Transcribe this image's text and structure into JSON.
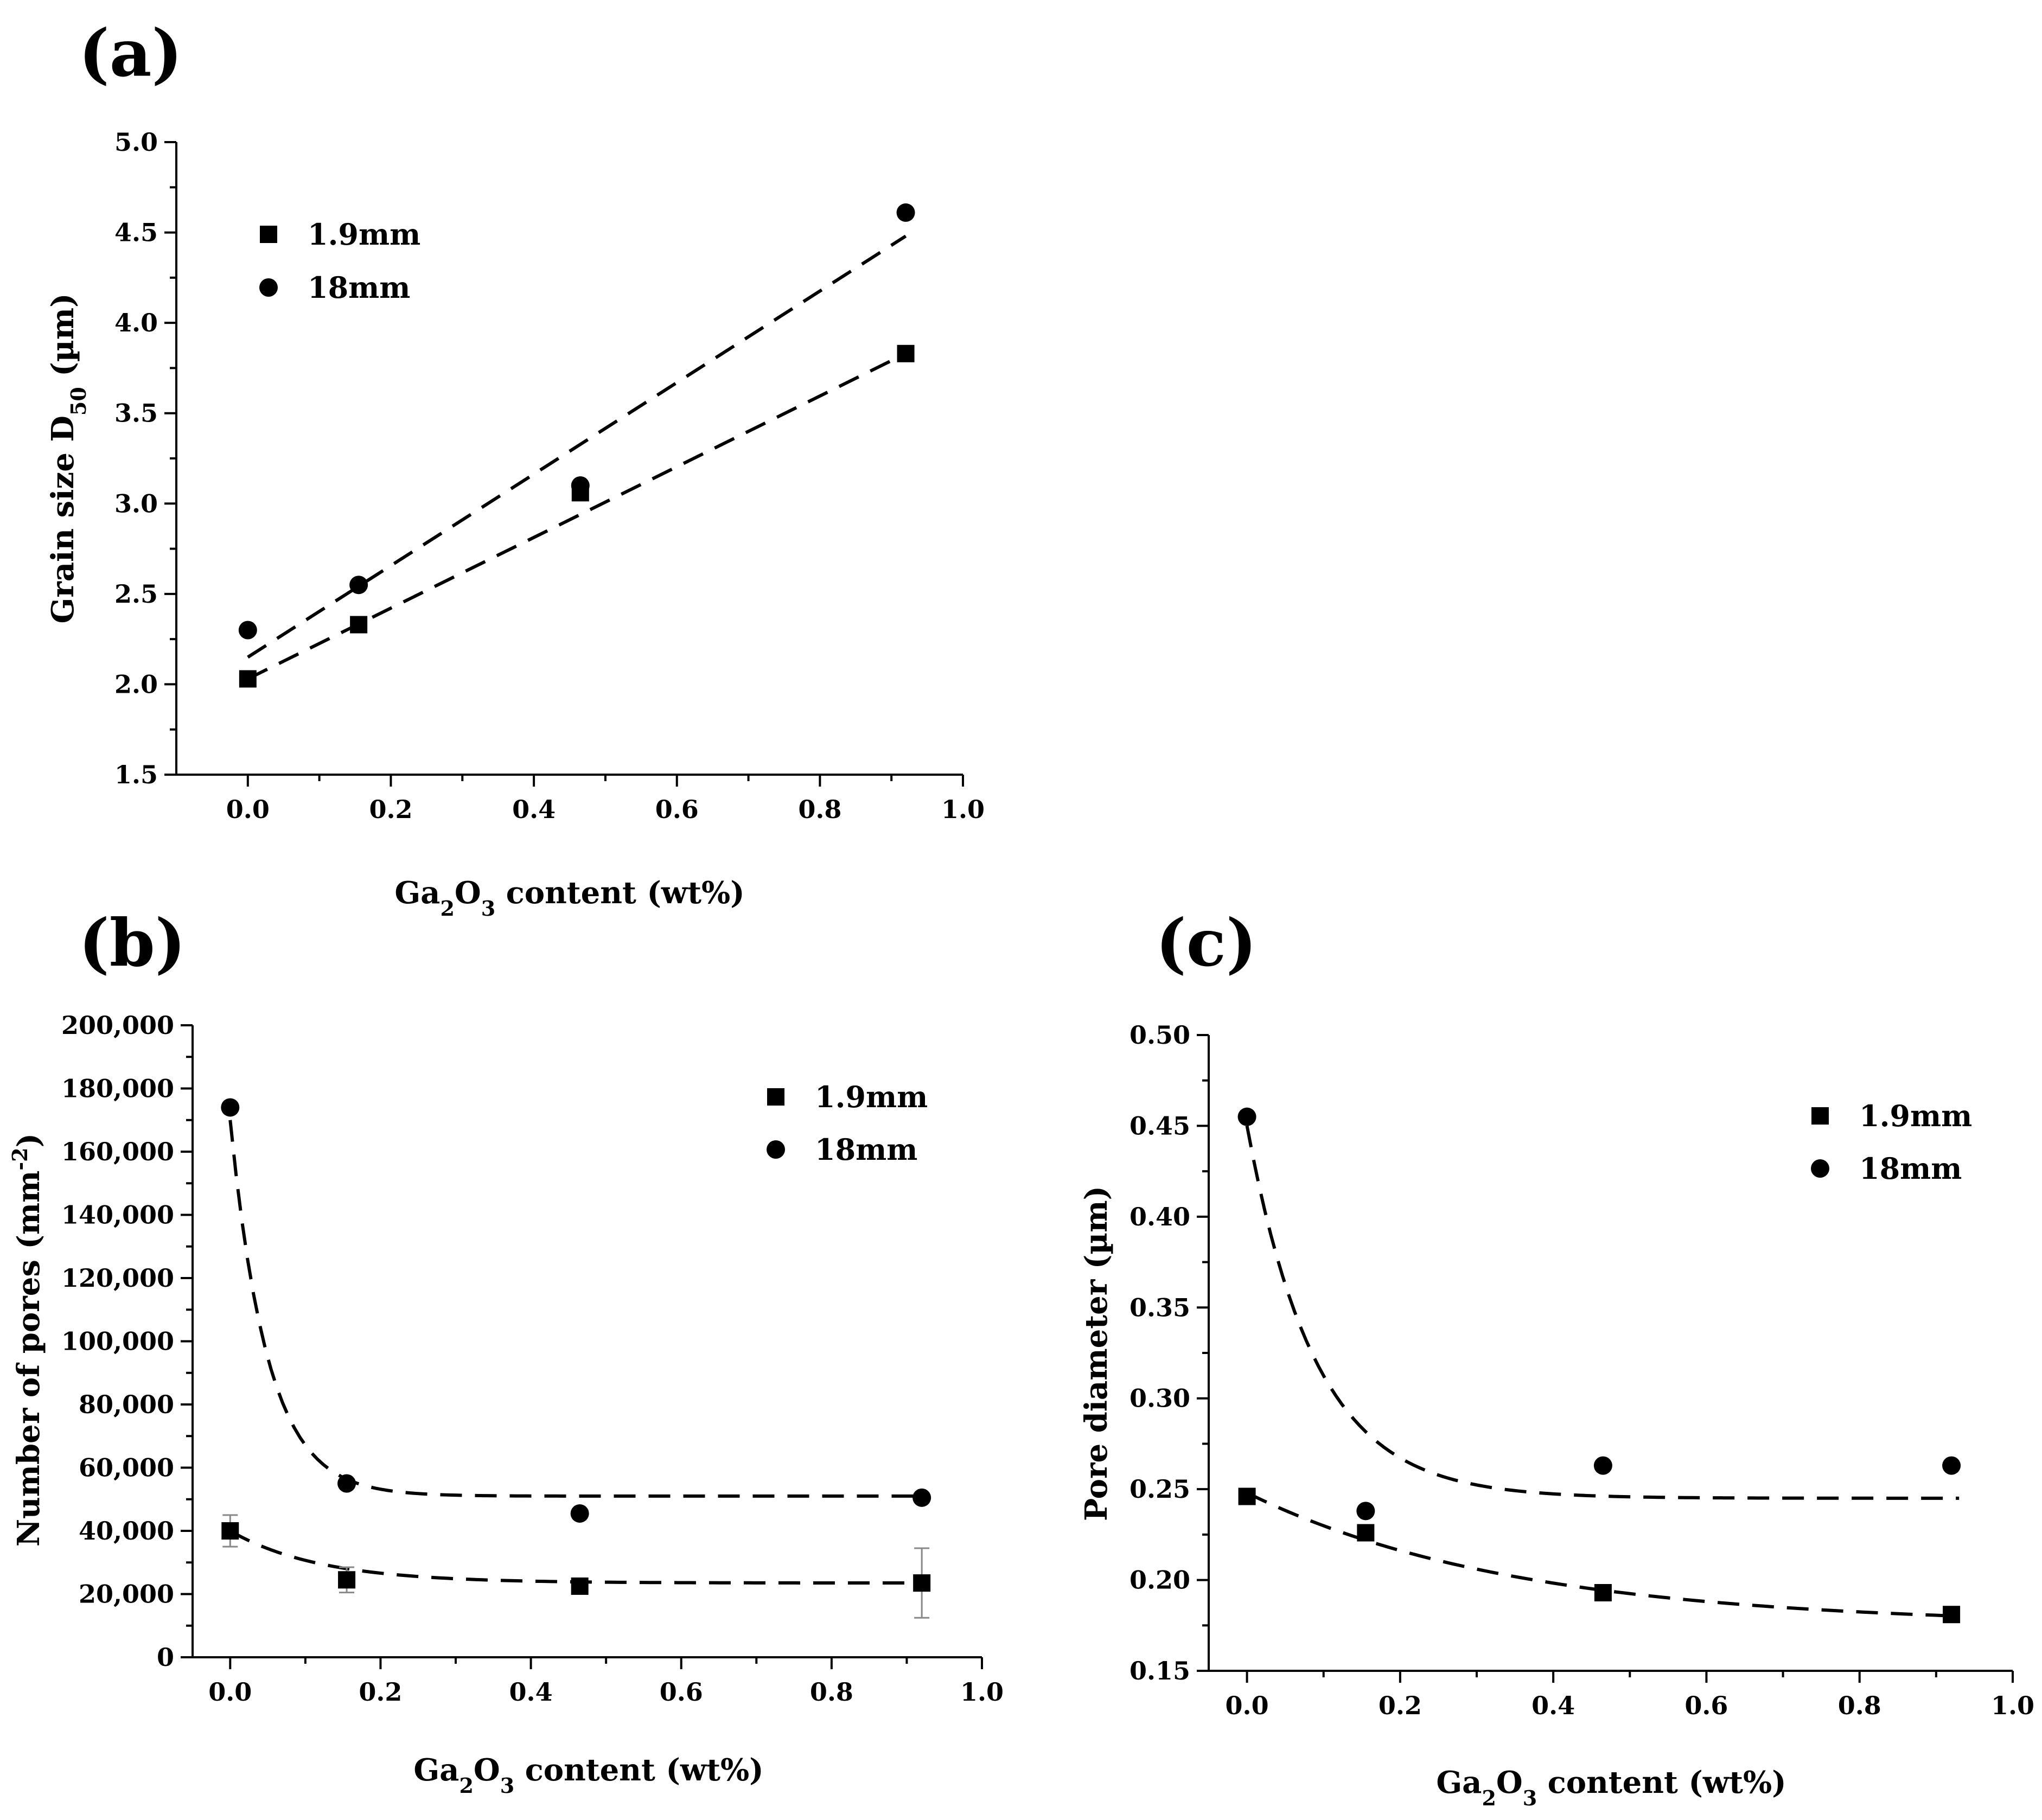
{
  "chart_data": [
    {
      "panel_label": "(a)",
      "type": "scatter",
      "xlabel": "Ga2O3 content (wt%)",
      "xlabel_parts": {
        "a": "Ga",
        "sub1": "2",
        "b": "O",
        "sub2": "3",
        "c": " content (wt%)"
      },
      "ylabel": "Grain size D50 (µm)",
      "ylabel_parts": {
        "a": "Grain size D",
        "sub": "50",
        "b": " (µm)"
      },
      "xlim": [
        -0.1,
        1.0
      ],
      "ylim": [
        1.5,
        5.0
      ],
      "xticks": [
        0.0,
        0.2,
        0.4,
        0.6,
        0.8,
        1.0
      ],
      "xtick_labels": [
        "0.0",
        "0.2",
        "0.4",
        "0.6",
        "0.8",
        "1.0"
      ],
      "yticks": [
        1.5,
        2.0,
        2.5,
        3.0,
        3.5,
        4.0,
        4.5,
        5.0
      ],
      "ytick_labels": [
        "1.5",
        "2.0",
        "2.5",
        "3.0",
        "3.5",
        "4.0",
        "4.5",
        "5.0"
      ],
      "legend_position": "top-left",
      "series": [
        {
          "name": "1.9mm",
          "marker": "square",
          "x": [
            0.0,
            0.155,
            0.465,
            0.92
          ],
          "y": [
            2.03,
            2.33,
            3.06,
            3.83
          ],
          "err": [
            0,
            0,
            0,
            0
          ],
          "fit": {
            "kind": "linear",
            "x": [
              0.0,
              0.92
            ],
            "y": [
              2.03,
              3.83
            ]
          }
        },
        {
          "name": "18mm",
          "marker": "circle",
          "x": [
            0.0,
            0.155,
            0.465,
            0.92
          ],
          "y": [
            2.3,
            2.55,
            3.1,
            4.61
          ],
          "err": [
            0,
            0,
            0,
            0
          ],
          "fit": {
            "kind": "linear",
            "x": [
              0.0,
              0.92
            ],
            "y": [
              2.15,
              4.48
            ]
          }
        }
      ]
    },
    {
      "panel_label": "(b)",
      "type": "scatter",
      "xlabel": "Ga2O3 content (wt%)",
      "xlabel_parts": {
        "a": "Ga",
        "sub1": "2",
        "b": "O",
        "sub2": "3",
        "c": " content (wt%)"
      },
      "ylabel": "Number of pores (mm-2)",
      "ylabel_parts": {
        "a": "Number of pores (mm",
        "sup": "-2",
        "b": ")"
      },
      "xlim": [
        -0.05,
        1.0
      ],
      "ylim": [
        0,
        200000
      ],
      "xticks": [
        0.0,
        0.2,
        0.4,
        0.6,
        0.8,
        1.0
      ],
      "xtick_labels": [
        "0.0",
        "0.2",
        "0.4",
        "0.6",
        "0.8",
        "1.0"
      ],
      "yticks": [
        0,
        20000,
        40000,
        60000,
        80000,
        100000,
        120000,
        140000,
        160000,
        180000,
        200000
      ],
      "ytick_labels": [
        "0",
        "20,000",
        "40,000",
        "60,000",
        "80,000",
        "100,000",
        "120,000",
        "140,000",
        "160,000",
        "180,000",
        "200,000"
      ],
      "legend_position": "top-right",
      "series": [
        {
          "name": "1.9mm",
          "marker": "square",
          "x": [
            0.0,
            0.155,
            0.465,
            0.92
          ],
          "y": [
            40000,
            24500,
            22500,
            23500
          ],
          "err": [
            5000,
            4000,
            2000,
            11000
          ],
          "fit": {
            "kind": "exp-decay",
            "y0": 23500,
            "A": 16500,
            "t": 0.12,
            "x_range": [
              0.0,
              0.93
            ]
          }
        },
        {
          "name": "18mm",
          "marker": "circle",
          "x": [
            0.0,
            0.155,
            0.465,
            0.92
          ],
          "y": [
            174000,
            55000,
            45500,
            50500
          ],
          "err": [
            0,
            0,
            0,
            0
          ],
          "fit": {
            "kind": "exp-decay",
            "y0": 51000,
            "A": 119000,
            "t": 0.05,
            "x_range": [
              0.0,
              0.93
            ]
          }
        }
      ]
    },
    {
      "panel_label": "(c)",
      "type": "scatter",
      "xlabel": "Ga2O3 content (wt%)",
      "xlabel_parts": {
        "a": "Ga",
        "sub1": "2",
        "b": "O",
        "sub2": "3",
        "c": " content (wt%)"
      },
      "ylabel": "Pore diameter (µm)",
      "ylabel_parts": {
        "a": "Pore diameter (µm)",
        "sub": "",
        "b": ""
      },
      "xlim": [
        -0.05,
        1.0
      ],
      "ylim": [
        0.15,
        0.5
      ],
      "xticks": [
        0.0,
        0.2,
        0.4,
        0.6,
        0.8,
        1.0
      ],
      "xtick_labels": [
        "0.0",
        "0.2",
        "0.4",
        "0.6",
        "0.8",
        "1.0"
      ],
      "yticks": [
        0.15,
        0.2,
        0.25,
        0.3,
        0.35,
        0.4,
        0.45,
        0.5
      ],
      "ytick_labels": [
        "0.15",
        "0.20",
        "0.25",
        "0.30",
        "0.35",
        "0.40",
        "0.45",
        "0.50"
      ],
      "legend_position": "top-right",
      "series": [
        {
          "name": "1.9mm",
          "marker": "square",
          "x": [
            0.0,
            0.155,
            0.465,
            0.92
          ],
          "y": [
            0.246,
            0.226,
            0.193,
            0.181
          ],
          "err": [
            0,
            0,
            0,
            0
          ],
          "fit": {
            "kind": "exp-decay",
            "y0": 0.175,
            "A": 0.073,
            "t": 0.35,
            "x_range": [
              0.0,
              0.93
            ]
          }
        },
        {
          "name": "18mm",
          "marker": "circle",
          "x": [
            0.0,
            0.155,
            0.465,
            0.92
          ],
          "y": [
            0.455,
            0.238,
            0.263,
            0.263
          ],
          "err": [
            0,
            0,
            0,
            0
          ],
          "fit": {
            "kind": "exp-decay",
            "y0": 0.245,
            "A": 0.205,
            "t": 0.09,
            "x_range": [
              0.0,
              0.93
            ]
          }
        }
      ]
    }
  ]
}
